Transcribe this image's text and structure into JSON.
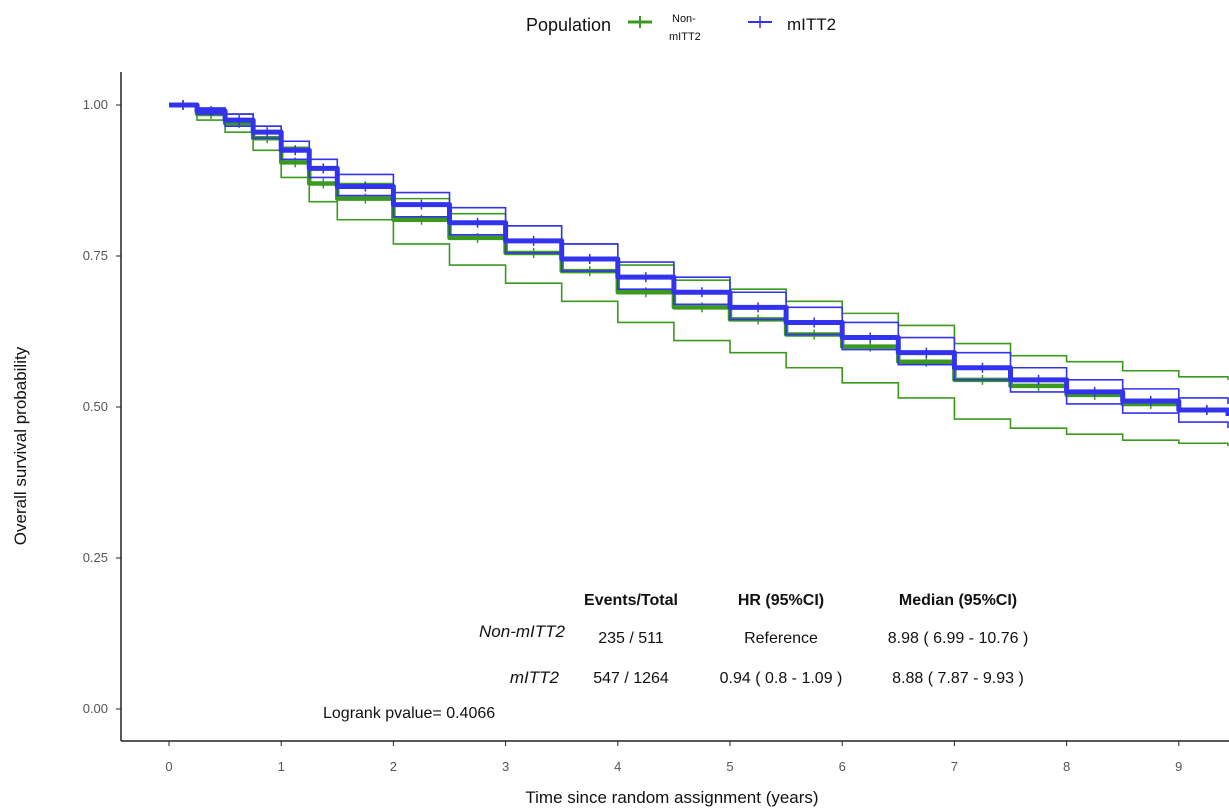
{
  "chart_data": {
    "type": "line",
    "subtype": "kaplan-meier-survival",
    "title": "",
    "xlabel": "Time since random assignment (years)",
    "ylabel": "Overall survival probability",
    "xlim": [
      -0.4,
      9.5
    ],
    "ylim": [
      -0.05,
      1.05
    ],
    "x_ticks": [
      0,
      1,
      2,
      3,
      4,
      5,
      6,
      7,
      8,
      9
    ],
    "y_ticks": [
      0.0,
      0.25,
      0.5,
      0.75,
      1.0
    ],
    "y_tick_labels": [
      "0.00",
      "0.25",
      "0.50",
      "0.75",
      "1.00"
    ],
    "grid": false,
    "legend": {
      "title": "Population",
      "position": "top",
      "entries": [
        {
          "label_line1": "Non-",
          "label_line2": "mITT2",
          "color": "#3a9a1e"
        },
        {
          "label_line1": "mITT2",
          "label_line2": "",
          "color": "#3333ee"
        }
      ]
    },
    "series": [
      {
        "name": "Non-mITT2",
        "color": "#3a9a1e",
        "x": [
          0,
          0.25,
          0.5,
          0.75,
          1.0,
          1.25,
          1.5,
          2.0,
          2.5,
          3.0,
          3.5,
          4.0,
          4.5,
          5.0,
          5.5,
          6.0,
          6.5,
          7.0,
          7.5,
          8.0,
          8.5,
          9.0,
          9.5
        ],
        "y": [
          1.0,
          0.985,
          0.97,
          0.945,
          0.905,
          0.87,
          0.845,
          0.81,
          0.78,
          0.755,
          0.725,
          0.69,
          0.665,
          0.645,
          0.62,
          0.6,
          0.575,
          0.545,
          0.535,
          0.52,
          0.505,
          0.495,
          0.49
        ],
        "ci_lower": [
          1.0,
          0.975,
          0.955,
          0.925,
          0.88,
          0.84,
          0.81,
          0.77,
          0.735,
          0.705,
          0.675,
          0.64,
          0.61,
          0.59,
          0.565,
          0.54,
          0.515,
          0.48,
          0.465,
          0.455,
          0.445,
          0.44,
          0.435
        ],
        "ci_upper": [
          1.0,
          0.995,
          0.985,
          0.965,
          0.93,
          0.895,
          0.87,
          0.845,
          0.82,
          0.8,
          0.77,
          0.735,
          0.71,
          0.695,
          0.675,
          0.655,
          0.635,
          0.605,
          0.585,
          0.575,
          0.56,
          0.55,
          0.545
        ]
      },
      {
        "name": "mITT2",
        "color": "#3333ee",
        "x": [
          0,
          0.25,
          0.5,
          0.75,
          1.0,
          1.25,
          1.5,
          2.0,
          2.5,
          3.0,
          3.5,
          4.0,
          4.5,
          5.0,
          5.5,
          6.0,
          6.5,
          7.0,
          7.5,
          8.0,
          8.5,
          9.0,
          9.5
        ],
        "y": [
          1.0,
          0.99,
          0.975,
          0.955,
          0.925,
          0.895,
          0.865,
          0.835,
          0.805,
          0.775,
          0.745,
          0.715,
          0.69,
          0.665,
          0.64,
          0.615,
          0.59,
          0.565,
          0.545,
          0.525,
          0.51,
          0.495,
          0.485
        ],
        "ci_lower": [
          1.0,
          0.985,
          0.965,
          0.945,
          0.91,
          0.88,
          0.85,
          0.815,
          0.785,
          0.755,
          0.725,
          0.695,
          0.67,
          0.645,
          0.62,
          0.595,
          0.57,
          0.545,
          0.525,
          0.505,
          0.49,
          0.475,
          0.465
        ],
        "ci_upper": [
          1.0,
          0.995,
          0.985,
          0.965,
          0.94,
          0.91,
          0.885,
          0.855,
          0.83,
          0.8,
          0.77,
          0.74,
          0.715,
          0.69,
          0.665,
          0.64,
          0.615,
          0.59,
          0.565,
          0.545,
          0.53,
          0.515,
          0.505
        ]
      }
    ],
    "summary_table": {
      "headers": [
        "Events/Total",
        "HR (95%CI)",
        "Median (95%CI)"
      ],
      "rows": [
        {
          "group": "Non-mITT2",
          "events": "235 / 511",
          "hr": "Reference",
          "median": "8.98 ( 6.99 - 10.76 )"
        },
        {
          "group": "mITT2",
          "events": "547 / 1264",
          "hr": "0.94 ( 0.8 - 1.09 )",
          "median": "8.88 ( 7.87 - 9.93 )"
        }
      ]
    },
    "annotation": "Logrank pvalue= 0.4066"
  }
}
